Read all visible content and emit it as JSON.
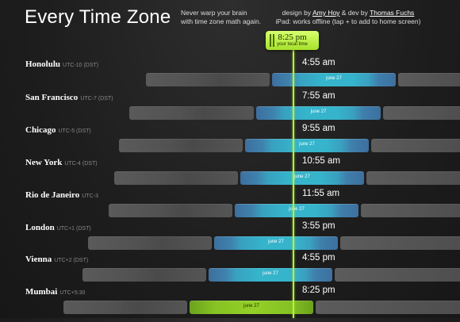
{
  "header": {
    "title": "Every Time Zone",
    "tagline_line1": "Never warp your brain",
    "tagline_line2": "with time zone math again.",
    "credits_prefix": "design by ",
    "credits_designer": "Amy Hoy",
    "credits_mid": " & dev by ",
    "credits_developer": "Thomas Fuchs",
    "ipad_note": "iPad: works offline (tap + to add to home screen)"
  },
  "now_marker": {
    "time": "8:25 pm",
    "label": "your local time",
    "accent_color": "#b4f03c"
  },
  "zones": [
    {
      "name": "Honolulu",
      "offset": "UTC-10 (DST)",
      "time": "4:55 am",
      "day_label": "june 27"
    },
    {
      "name": "San Francisco",
      "offset": "UTC-7 (DST)",
      "time": "7:55 am",
      "day_label": "june 27"
    },
    {
      "name": "Chicago",
      "offset": "UTC-5 (DST)",
      "time": "9:55 am",
      "day_label": "june 27"
    },
    {
      "name": "New York",
      "offset": "UTC-4 (DST)",
      "time": "10:55 am",
      "day_label": "june 27"
    },
    {
      "name": "Rio de Janeiro",
      "offset": "UTC-3",
      "time": "11:55 am",
      "day_label": "june 27"
    },
    {
      "name": "London",
      "offset": "UTC+1 (DST)",
      "time": "3:55 pm",
      "day_label": "june 27"
    },
    {
      "name": "Vienna",
      "offset": "UTC+2 (DST)",
      "time": "4:55 pm",
      "day_label": "june 27"
    },
    {
      "name": "Mumbai",
      "offset": "UTC+5:30",
      "time": "8:25 pm",
      "day_label": "june 27"
    }
  ]
}
